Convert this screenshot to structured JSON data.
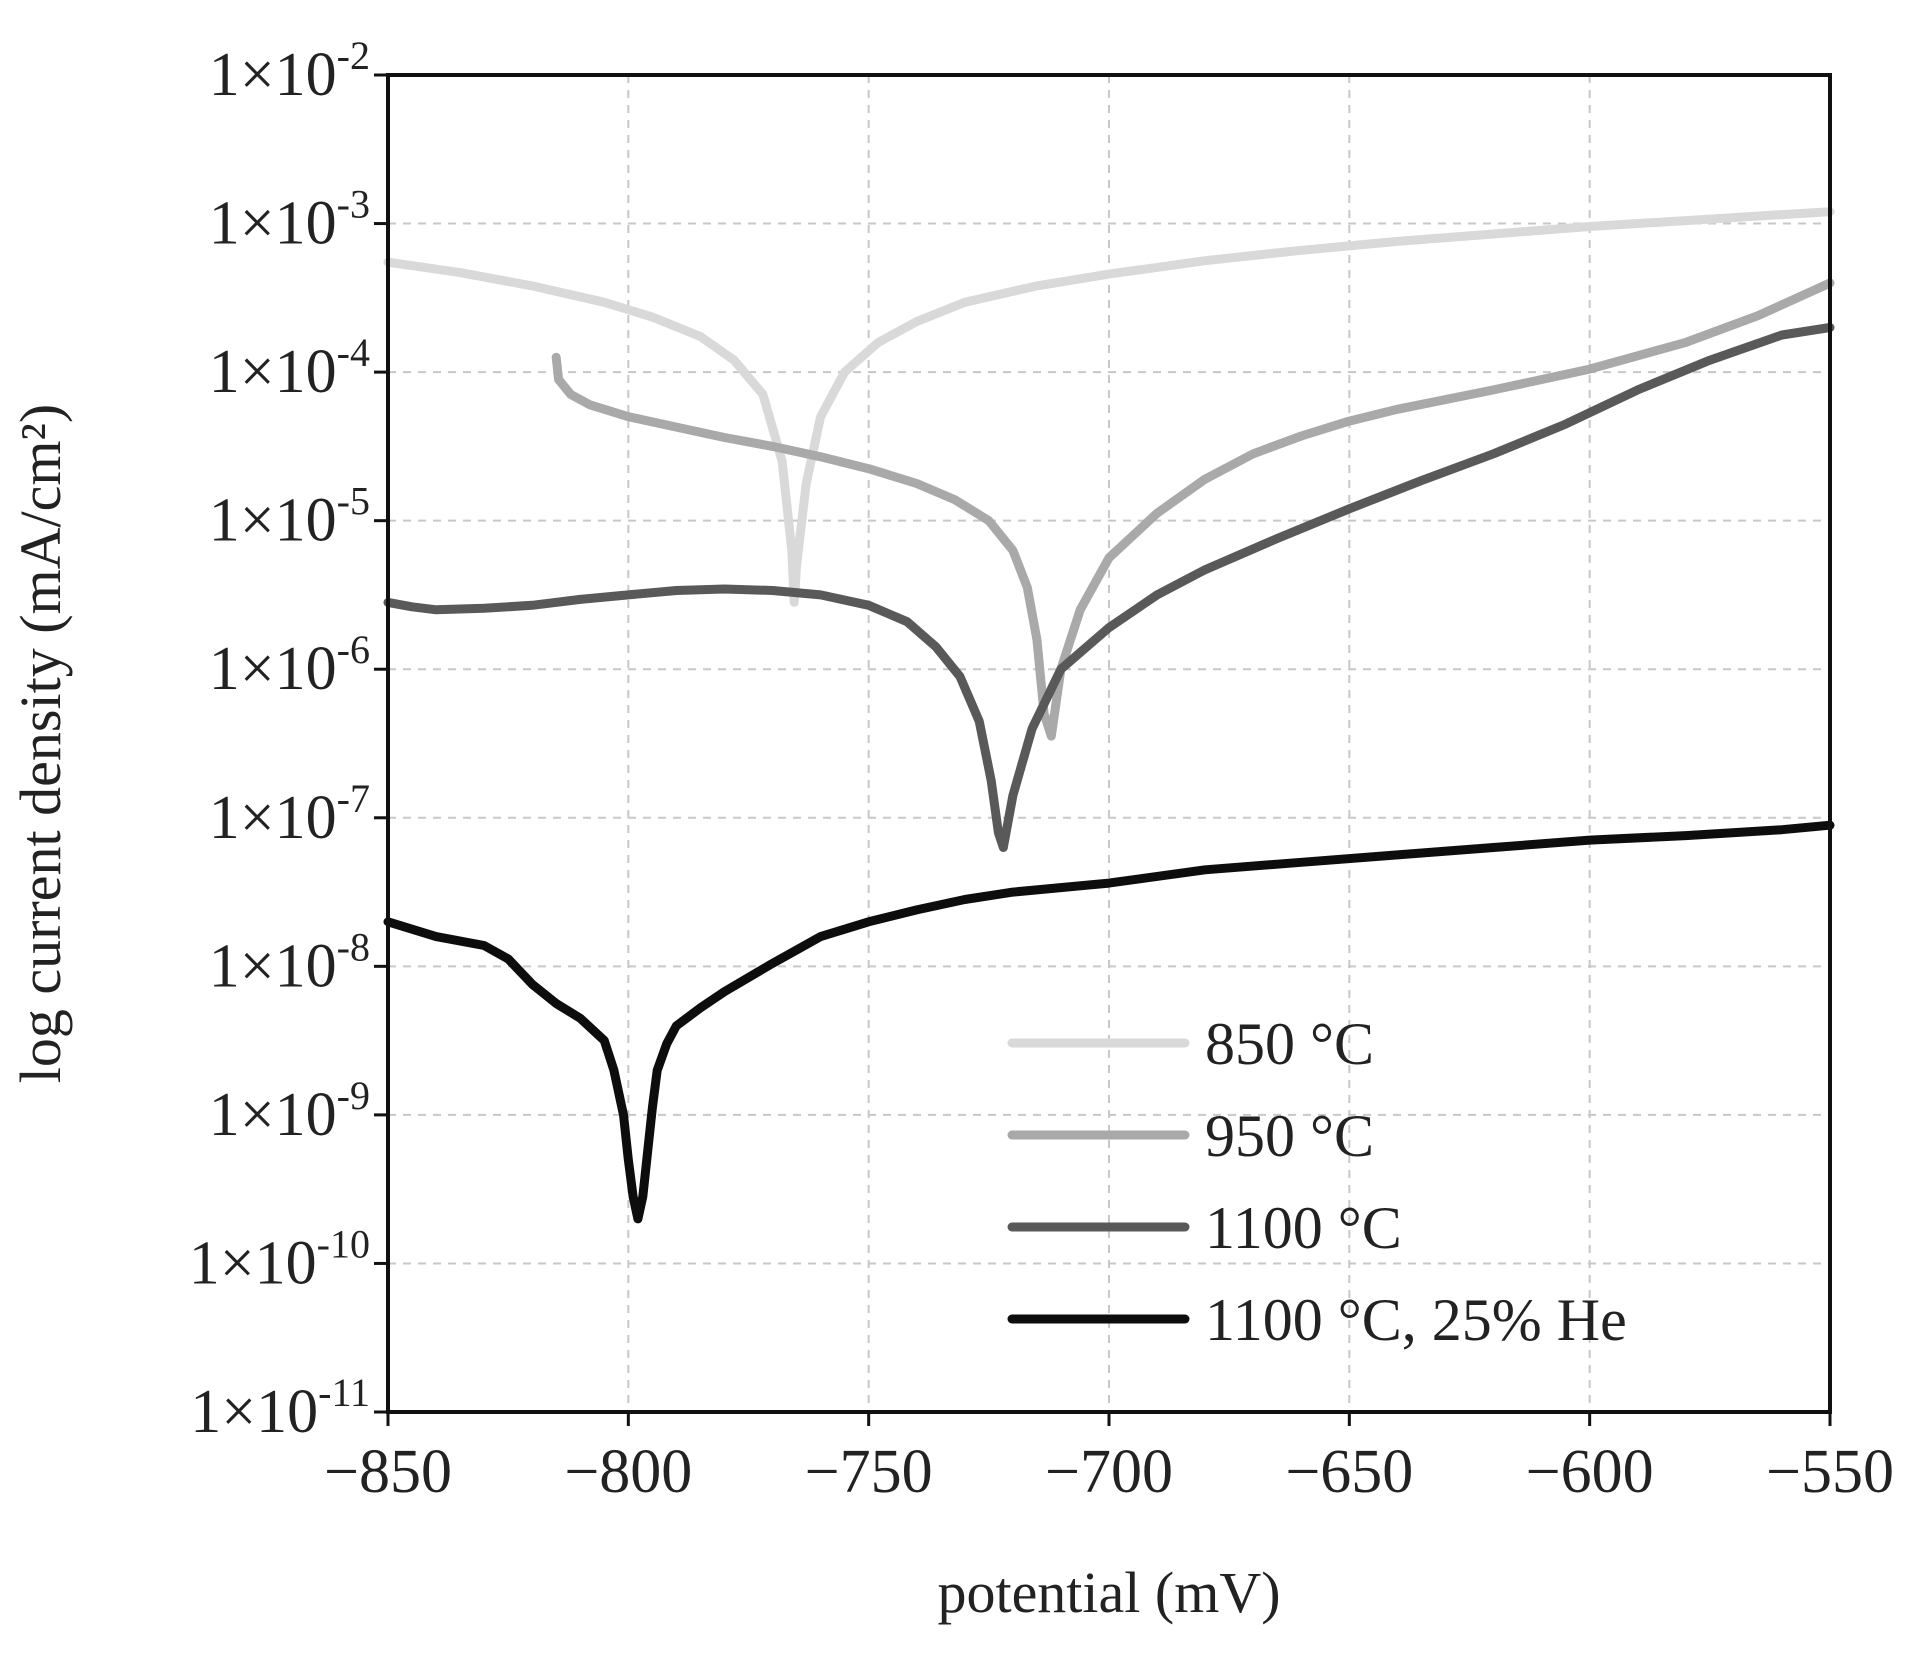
{
  "chart_data": {
    "type": "line",
    "title": "",
    "xlabel": "potential (mV)",
    "ylabel": "log current density (mA/cm²)",
    "xlim": [
      -850,
      -550
    ],
    "ylim_exponent": [
      -11,
      -2
    ],
    "yscale": "log",
    "grid": true,
    "legend_position": "bottom-right",
    "x_ticks": [
      {
        "value": -850,
        "label": "−850"
      },
      {
        "value": -800,
        "label": "−800"
      },
      {
        "value": -750,
        "label": "−750"
      },
      {
        "value": -700,
        "label": "−700"
      },
      {
        "value": -650,
        "label": "−650"
      },
      {
        "value": -600,
        "label": "−600"
      },
      {
        "value": -550,
        "label": "−550"
      }
    ],
    "y_ticks": [
      {
        "exp": -2,
        "base": "1×10",
        "sup": "-2"
      },
      {
        "exp": -3,
        "base": "1×10",
        "sup": "-3"
      },
      {
        "exp": -4,
        "base": "1×10",
        "sup": "-4"
      },
      {
        "exp": -5,
        "base": "1×10",
        "sup": "-5"
      },
      {
        "exp": -6,
        "base": "1×10",
        "sup": "-6"
      },
      {
        "exp": -7,
        "base": "1×10",
        "sup": "-7"
      },
      {
        "exp": -8,
        "base": "1×10",
        "sup": "-8"
      },
      {
        "exp": -9,
        "base": "1×10",
        "sup": "-9"
      },
      {
        "exp": -10,
        "base": "1×10",
        "sup": "-10"
      },
      {
        "exp": -11,
        "base": "1×10",
        "sup": "-11"
      }
    ],
    "series": [
      {
        "name": "850 °C",
        "color": "#d9d9d9",
        "x": [
          -850,
          -835,
          -820,
          -805,
          -795,
          -785,
          -778,
          -772,
          -768,
          -766,
          -765.5,
          -765,
          -763,
          -760,
          -755,
          -748,
          -740,
          -730,
          -715,
          -700,
          -680,
          -660,
          -640,
          -620,
          -600,
          -580,
          -560,
          -550
        ],
        "log_y": [
          -3.26,
          -3.33,
          -3.42,
          -3.53,
          -3.63,
          -3.76,
          -3.92,
          -4.15,
          -4.6,
          -5.2,
          -5.55,
          -5.3,
          -4.75,
          -4.3,
          -4.0,
          -3.8,
          -3.66,
          -3.53,
          -3.42,
          -3.34,
          -3.25,
          -3.18,
          -3.12,
          -3.07,
          -3.02,
          -2.98,
          -2.94,
          -2.92
        ]
      },
      {
        "name": "950 °C",
        "color": "#a9a9a9",
        "x": [
          -815,
          -814.5,
          -812,
          -808,
          -800,
          -790,
          -780,
          -770,
          -760,
          -750,
          -740,
          -732,
          -725,
          -720,
          -717,
          -715,
          -713.5,
          -712,
          -710,
          -706,
          -700,
          -690,
          -680,
          -670,
          -660,
          -650,
          -640,
          -620,
          -600,
          -580,
          -565,
          -550
        ],
        "log_y": [
          -3.9,
          -4.05,
          -4.15,
          -4.22,
          -4.3,
          -4.37,
          -4.44,
          -4.5,
          -4.57,
          -4.65,
          -4.75,
          -4.86,
          -5.0,
          -5.2,
          -5.45,
          -5.8,
          -6.3,
          -6.45,
          -6.0,
          -5.6,
          -5.25,
          -4.95,
          -4.72,
          -4.55,
          -4.43,
          -4.33,
          -4.25,
          -4.12,
          -3.98,
          -3.8,
          -3.62,
          -3.4
        ]
      },
      {
        "name": "1100 °C",
        "color": "#595959",
        "x": [
          -850,
          -845,
          -840,
          -830,
          -820,
          -810,
          -800,
          -790,
          -780,
          -770,
          -760,
          -750,
          -742,
          -736,
          -731,
          -727,
          -724.5,
          -723,
          -722,
          -720,
          -716,
          -710,
          -700,
          -690,
          -680,
          -665,
          -650,
          -635,
          -620,
          -605,
          -590,
          -575,
          -560,
          -550
        ],
        "log_y": [
          -5.55,
          -5.58,
          -5.6,
          -5.59,
          -5.57,
          -5.53,
          -5.5,
          -5.47,
          -5.46,
          -5.47,
          -5.5,
          -5.57,
          -5.68,
          -5.85,
          -6.05,
          -6.35,
          -6.75,
          -7.1,
          -7.2,
          -6.85,
          -6.4,
          -6.0,
          -5.72,
          -5.5,
          -5.33,
          -5.12,
          -4.92,
          -4.73,
          -4.55,
          -4.35,
          -4.12,
          -3.92,
          -3.75,
          -3.7
        ]
      },
      {
        "name": "1100 °C, 25% He",
        "color": "#0d0d0d",
        "x": [
          -850,
          -840,
          -830,
          -825,
          -820,
          -815,
          -810,
          -805,
          -803,
          -801,
          -800,
          -799,
          -798,
          -797,
          -796,
          -795,
          -794,
          -792,
          -790,
          -785,
          -780,
          -770,
          -760,
          -750,
          -740,
          -730,
          -720,
          -700,
          -680,
          -660,
          -640,
          -620,
          -600,
          -580,
          -560,
          -550
        ],
        "log_y": [
          -7.7,
          -7.8,
          -7.86,
          -7.95,
          -8.12,
          -8.25,
          -8.35,
          -8.5,
          -8.7,
          -9.0,
          -9.3,
          -9.55,
          -9.7,
          -9.55,
          -9.25,
          -8.95,
          -8.7,
          -8.52,
          -8.4,
          -8.28,
          -8.17,
          -7.98,
          -7.8,
          -7.7,
          -7.62,
          -7.55,
          -7.5,
          -7.44,
          -7.35,
          -7.3,
          -7.25,
          -7.2,
          -7.15,
          -7.12,
          -7.08,
          -7.05
        ]
      }
    ]
  }
}
